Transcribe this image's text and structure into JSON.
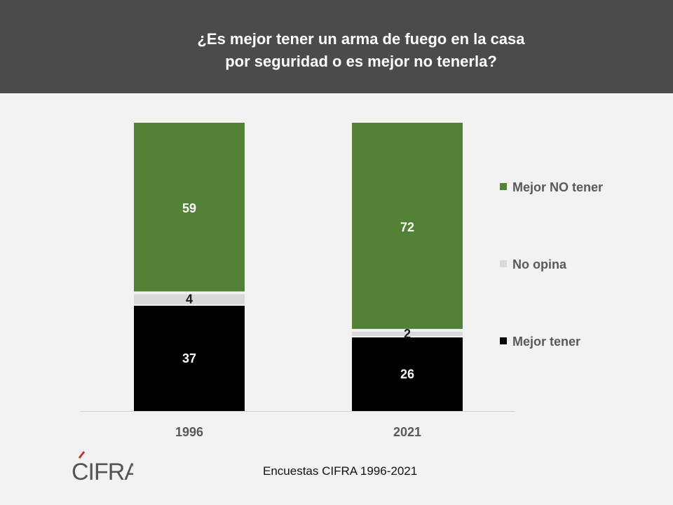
{
  "title": {
    "line1": "¿Es mejor tener un arma de fuego en la casa",
    "line2": "por seguridad o es mejor no tenerla?"
  },
  "chart_data": {
    "type": "bar",
    "stacked": true,
    "categories": [
      "1996",
      "2021"
    ],
    "series": [
      {
        "name": "Mejor tener",
        "values": [
          37,
          26
        ],
        "color": "#000000"
      },
      {
        "name": "No opina",
        "values": [
          4,
          2
        ],
        "color": "#d9d9d9"
      },
      {
        "name": "Mejor NO tener",
        "values": [
          59,
          72
        ],
        "color": "#538135"
      }
    ],
    "legend_order": [
      "Mejor NO tener",
      "No opina",
      "Mejor tener"
    ],
    "legend_position": "right",
    "ylim": [
      0,
      100
    ],
    "grid": false
  },
  "logo": {
    "text": "CIFRA",
    "accent_color": "#c0392b"
  },
  "source": "Encuestas CIFRA 1996-2021",
  "colors": {
    "header_bg": "#4b4b4b",
    "page_bg": "#f2f2f2",
    "label_on_dark": "#ffffff",
    "label_on_light": "#1a1a1a",
    "axis_text": "#595959"
  }
}
